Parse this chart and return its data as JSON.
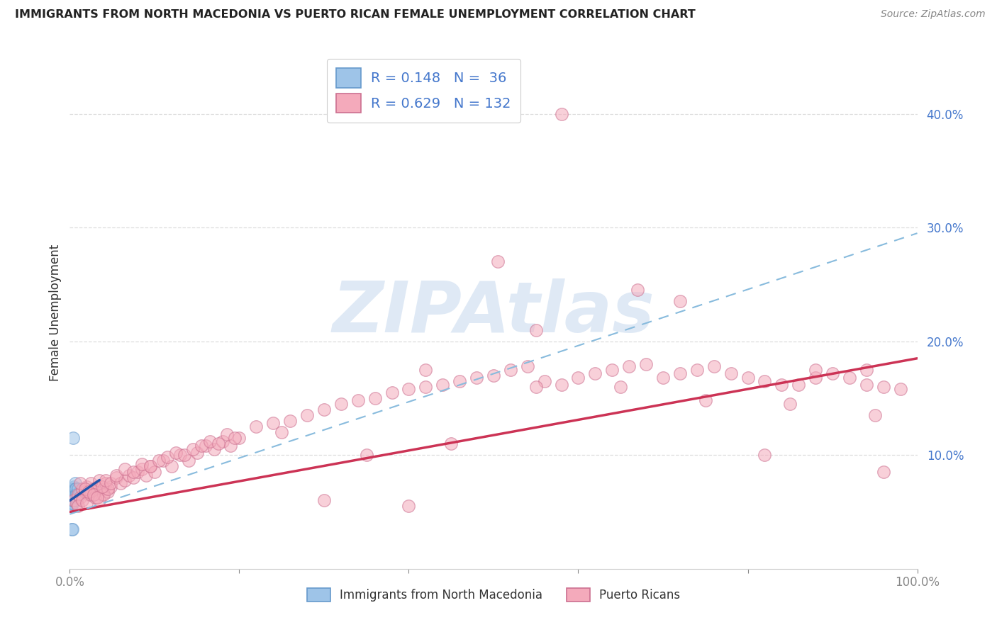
{
  "title": "IMMIGRANTS FROM NORTH MACEDONIA VS PUERTO RICAN FEMALE UNEMPLOYMENT CORRELATION CHART",
  "source": "Source: ZipAtlas.com",
  "ylabel": "Female Unemployment",
  "legend_blue_r": "0.148",
  "legend_blue_n": "36",
  "legend_pink_r": "0.629",
  "legend_pink_n": "132",
  "legend_label_blue": "Immigrants from North Macedonia",
  "legend_label_pink": "Puerto Ricans",
  "blue_color": "#9EC4E8",
  "blue_edge": "#6699CC",
  "pink_color": "#F4AABB",
  "pink_edge": "#CC7090",
  "blue_line_color": "#2255AA",
  "pink_line_color": "#CC3355",
  "dash_line_color": "#88BBDD",
  "right_tick_color": "#4477CC",
  "title_color": "#222222",
  "source_color": "#888888",
  "ylabel_color": "#333333",
  "grid_color": "#DDDDDD",
  "xlim": [
    0.0,
    1.0
  ],
  "ylim": [
    0.0,
    0.45
  ],
  "yticks": [
    0.1,
    0.2,
    0.3,
    0.4
  ],
  "ytick_labels": [
    "10.0%",
    "20.0%",
    "30.0%",
    "40.0%"
  ],
  "xticks": [
    0.0,
    0.2,
    0.4,
    0.6,
    0.8,
    1.0
  ],
  "xtick_labels_show": [
    "0.0%",
    "",
    "",
    "",
    "",
    "100.0%"
  ],
  "watermark_text": "ZIPAtlas",
  "watermark_color": "#C5D8EE",
  "pink_line_x0": 0.0,
  "pink_line_y0": 0.05,
  "pink_line_x1": 1.0,
  "pink_line_y1": 0.185,
  "dash_line_x0": 0.0,
  "dash_line_y0": 0.048,
  "dash_line_x1": 1.0,
  "dash_line_y1": 0.295,
  "blue_line_x0": 0.0,
  "blue_line_y0": 0.06,
  "blue_line_x1": 0.035,
  "blue_line_y1": 0.078
}
